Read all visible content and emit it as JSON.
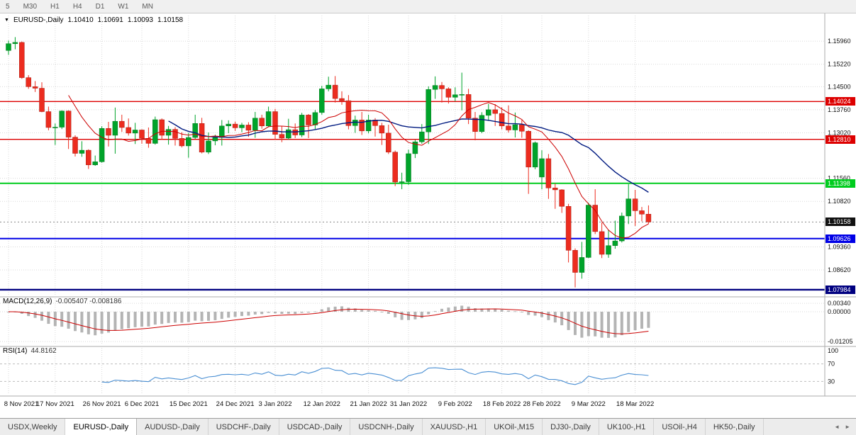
{
  "toolbar": {
    "timeframes": [
      "5",
      "M30",
      "H1",
      "H4",
      "D1",
      "W1",
      "MN"
    ]
  },
  "header": {
    "dropdown_icon": "▼",
    "symbol": "EURUSD-,Daily",
    "open": "1.10410",
    "high": "1.10691",
    "low": "1.10093",
    "close": "1.10158"
  },
  "chart": {
    "price_ticks": [
      {
        "label": "1.15960",
        "price": 1.1596
      },
      {
        "label": "1.15220",
        "price": 1.1522
      },
      {
        "label": "1.14500",
        "price": 1.145
      },
      {
        "label": "1.13760",
        "price": 1.1376
      },
      {
        "label": "1.13020",
        "price": 1.1302
      },
      {
        "label": "1.11560",
        "price": 1.1156
      },
      {
        "label": "1.10820",
        "price": 1.1082
      },
      {
        "label": "1.09360",
        "price": 1.0936
      },
      {
        "label": "1.08620",
        "price": 1.0862
      }
    ],
    "hlines": [
      {
        "label": "1.14024",
        "price": 1.14024,
        "color": "#dd0000",
        "width": 1.4
      },
      {
        "label": "1.12810",
        "price": 1.1281,
        "color": "#dd0000",
        "width": 1.4
      },
      {
        "label": "1.11398",
        "price": 1.11398,
        "color": "#00cc1e",
        "width": 2
      },
      {
        "label": "1.09626",
        "price": 1.09626,
        "color": "#0000e6",
        "width": 2
      },
      {
        "label": "1.07984",
        "price": 1.07984,
        "color": "#000080",
        "width": 2.4
      }
    ],
    "current_price": {
      "label": "1.10158",
      "price": 1.10158,
      "color": "#111111"
    },
    "dates": [
      {
        "label": "8 Nov 2021",
        "index": 0
      },
      {
        "label": "17 Nov 2021",
        "index": 7
      },
      {
        "label": "26 Nov 2021",
        "index": 14
      },
      {
        "label": "6 Dec 2021",
        "index": 20
      },
      {
        "label": "15 Dec 2021",
        "index": 27
      },
      {
        "label": "24 Dec 2021",
        "index": 34
      },
      {
        "label": "3 Jan 2022",
        "index": 40
      },
      {
        "label": "12 Jan 2022",
        "index": 47
      },
      {
        "label": "21 Jan 2022",
        "index": 54
      },
      {
        "label": "31 Jan 2022",
        "index": 60
      },
      {
        "label": "9 Feb 2022",
        "index": 67
      },
      {
        "label": "18 Feb 2022",
        "index": 74
      },
      {
        "label": "28 Feb 2022",
        "index": 80
      },
      {
        "label": "9 Mar 2022",
        "index": 87
      },
      {
        "label": "18 Mar 2022",
        "index": 94
      }
    ],
    "ma": {
      "fast_period": 10,
      "fast_color": "#cc0000",
      "slow_period": 25,
      "slow_color": "#001a80"
    },
    "candles": [
      [
        1.1566,
        1.1598,
        1.1552,
        1.1588
      ],
      [
        1.1588,
        1.1609,
        1.157,
        1.1592
      ],
      [
        1.1592,
        1.1595,
        1.1475,
        1.1479
      ],
      [
        1.1479,
        1.1487,
        1.1443,
        1.145
      ],
      [
        1.145,
        1.1468,
        1.1433,
        1.1445
      ],
      [
        1.1445,
        1.1464,
        1.1368,
        1.137
      ],
      [
        1.137,
        1.1386,
        1.131,
        1.1319
      ],
      [
        1.1319,
        1.1332,
        1.1263,
        1.132
      ],
      [
        1.132,
        1.1374,
        1.1314,
        1.1372
      ],
      [
        1.1372,
        1.1374,
        1.125,
        1.1288
      ],
      [
        1.1288,
        1.1294,
        1.1226,
        1.1236
      ],
      [
        1.1236,
        1.1275,
        1.1225,
        1.1246
      ],
      [
        1.1246,
        1.1249,
        1.1186,
        1.1199
      ],
      [
        1.1199,
        1.1229,
        1.1196,
        1.1209
      ],
      [
        1.1209,
        1.1323,
        1.1206,
        1.1316
      ],
      [
        1.1316,
        1.1337,
        1.1258,
        1.1294
      ],
      [
        1.1294,
        1.1383,
        1.1235,
        1.1339
      ],
      [
        1.1339,
        1.136,
        1.1305,
        1.1319
      ],
      [
        1.1319,
        1.1348,
        1.1293,
        1.1301
      ],
      [
        1.1301,
        1.1334,
        1.1266,
        1.1311
      ],
      [
        1.1311,
        1.1313,
        1.1267,
        1.1284
      ],
      [
        1.1284,
        1.1319,
        1.1254,
        1.1268
      ],
      [
        1.1268,
        1.1354,
        1.1264,
        1.1344
      ],
      [
        1.1344,
        1.1348,
        1.128,
        1.1294
      ],
      [
        1.1294,
        1.1324,
        1.1264,
        1.1313
      ],
      [
        1.1313,
        1.132,
        1.1261,
        1.1284
      ],
      [
        1.1284,
        1.1304,
        1.1255,
        1.126
      ],
      [
        1.126,
        1.1302,
        1.1222,
        1.1287
      ],
      [
        1.1287,
        1.136,
        1.1282,
        1.1332
      ],
      [
        1.1332,
        1.135,
        1.1236,
        1.124
      ],
      [
        1.124,
        1.1303,
        1.1234,
        1.1276
      ],
      [
        1.1276,
        1.1296,
        1.1262,
        1.1287
      ],
      [
        1.1287,
        1.1343,
        1.1261,
        1.1324
      ],
      [
        1.1324,
        1.1342,
        1.1301,
        1.133
      ],
      [
        1.133,
        1.1338,
        1.1308,
        1.1318
      ],
      [
        1.1318,
        1.1334,
        1.1304,
        1.1327
      ],
      [
        1.1327,
        1.1336,
        1.1289,
        1.131
      ],
      [
        1.131,
        1.1369,
        1.1286,
        1.1349
      ],
      [
        1.1349,
        1.136,
        1.1315,
        1.1324
      ],
      [
        1.1324,
        1.1386,
        1.132,
        1.137
      ],
      [
        1.137,
        1.1379,
        1.1279,
        1.1297
      ],
      [
        1.1297,
        1.1323,
        1.1272,
        1.1285
      ],
      [
        1.1285,
        1.1347,
        1.128,
        1.1312
      ],
      [
        1.1312,
        1.1332,
        1.1285,
        1.1295
      ],
      [
        1.1295,
        1.1366,
        1.1288,
        1.1359
      ],
      [
        1.1359,
        1.1362,
        1.1285,
        1.1327
      ],
      [
        1.1327,
        1.1375,
        1.1314,
        1.1367
      ],
      [
        1.1367,
        1.1453,
        1.136,
        1.1443
      ],
      [
        1.1443,
        1.1482,
        1.1435,
        1.1455
      ],
      [
        1.1455,
        1.1484,
        1.1399,
        1.1412
      ],
      [
        1.1412,
        1.1435,
        1.1392,
        1.1405
      ],
      [
        1.1405,
        1.1423,
        1.1313,
        1.1325
      ],
      [
        1.1325,
        1.1357,
        1.1302,
        1.1343
      ],
      [
        1.1343,
        1.1369,
        1.1295,
        1.1308
      ],
      [
        1.1308,
        1.136,
        1.13,
        1.1343
      ],
      [
        1.1343,
        1.1349,
        1.129,
        1.1325
      ],
      [
        1.1325,
        1.1334,
        1.1263,
        1.1301
      ],
      [
        1.1301,
        1.1328,
        1.1234,
        1.124
      ],
      [
        1.124,
        1.1245,
        1.1131,
        1.1144
      ],
      [
        1.1144,
        1.1174,
        1.1121,
        1.1145
      ],
      [
        1.1145,
        1.1248,
        1.1135,
        1.1235
      ],
      [
        1.1235,
        1.1279,
        1.1221,
        1.1273
      ],
      [
        1.1273,
        1.133,
        1.1267,
        1.1305
      ],
      [
        1.1305,
        1.1451,
        1.1266,
        1.1441
      ],
      [
        1.1441,
        1.1483,
        1.1411,
        1.1454
      ],
      [
        1.1454,
        1.1465,
        1.1399,
        1.1443
      ],
      [
        1.1443,
        1.1448,
        1.1396,
        1.1416
      ],
      [
        1.1416,
        1.1448,
        1.1403,
        1.1424
      ],
      [
        1.1424,
        1.1495,
        1.1374,
        1.1425
      ],
      [
        1.1425,
        1.1443,
        1.133,
        1.1349
      ],
      [
        1.1349,
        1.1369,
        1.1278,
        1.1306
      ],
      [
        1.1306,
        1.1368,
        1.1301,
        1.1358
      ],
      [
        1.1358,
        1.1395,
        1.134,
        1.1376
      ],
      [
        1.1376,
        1.1394,
        1.1324,
        1.1364
      ],
      [
        1.1364,
        1.1384,
        1.1313,
        1.1324
      ],
      [
        1.1324,
        1.139,
        1.1303,
        1.1311
      ],
      [
        1.1311,
        1.1367,
        1.1287,
        1.1328
      ],
      [
        1.1328,
        1.1343,
        1.1286,
        1.1307
      ],
      [
        1.1307,
        1.131,
        1.1106,
        1.1192
      ],
      [
        1.1192,
        1.1274,
        1.1185,
        1.127
      ],
      [
        1.116,
        1.1246,
        1.1121,
        1.1219
      ],
      [
        1.1219,
        1.1234,
        1.109,
        1.1125
      ],
      [
        1.1125,
        1.114,
        1.1058,
        1.1119
      ],
      [
        1.1119,
        1.1121,
        1.1045,
        1.1066
      ],
      [
        1.1066,
        1.1074,
        1.0886,
        1.0925
      ],
      [
        1.0925,
        1.0931,
        1.0806,
        1.0854
      ],
      [
        1.0854,
        1.0952,
        1.0834,
        1.0902
      ],
      [
        1.0902,
        1.1078,
        1.09,
        1.107
      ],
      [
        1.107,
        1.1121,
        1.0977,
        1.0985
      ],
      [
        1.0985,
        1.1014,
        1.09,
        1.0912
      ],
      [
        1.0912,
        1.0991,
        1.0901,
        1.094
      ],
      [
        1.094,
        1.102,
        1.093,
        1.0955
      ],
      [
        1.0955,
        1.1046,
        1.095,
        1.1035
      ],
      [
        1.1035,
        1.1137,
        1.1009,
        1.109
      ],
      [
        1.109,
        1.1119,
        1.1003,
        1.1052
      ],
      [
        1.1052,
        1.1064,
        1.1018,
        1.1041
      ],
      [
        1.1041,
        1.10691,
        1.10093,
        1.10158
      ]
    ]
  },
  "macd": {
    "title": "MACD(12,26,9)",
    "values": "-0.005407 -0.008186",
    "fast": 12,
    "slow": 26,
    "signal": 9,
    "axis": [
      {
        "label": "0.00340",
        "value": 0.0034
      },
      {
        "label": "0.00000",
        "value": 0
      },
      {
        "label": "-0.01205",
        "value": -0.01205
      }
    ],
    "hist_color": "#b4b4b4",
    "signal_color": "#cc0000"
  },
  "rsi": {
    "title": "RSI(14)",
    "value": "44.8162",
    "period": 14,
    "axis": [
      {
        "label": "100",
        "value": 100
      },
      {
        "label": "70",
        "value": 70
      },
      {
        "label": "30",
        "value": 30
      }
    ],
    "levels": [
      70,
      30
    ],
    "line_color": "#4a8fd3"
  },
  "tabs": {
    "scroll_left": "◄",
    "scroll_right": "►",
    "items": [
      {
        "label": "USDX,Weekly",
        "active": false
      },
      {
        "label": "EURUSD-,Daily",
        "active": true
      },
      {
        "label": "AUDUSD-,Daily",
        "active": false
      },
      {
        "label": "USDCHF-,Daily",
        "active": false
      },
      {
        "label": "USDCAD-,Daily",
        "active": false
      },
      {
        "label": "USDCNH-,Daily",
        "active": false
      },
      {
        "label": "XAUUSD-,H1",
        "active": false
      },
      {
        "label": "UKOil-,M15",
        "active": false
      },
      {
        "label": "DJ30-,Daily",
        "active": false
      },
      {
        "label": "UK100-,H1",
        "active": false
      },
      {
        "label": "USOil-,H4",
        "active": false
      },
      {
        "label": "HK50-,Daily",
        "active": false
      }
    ]
  },
  "colors": {
    "bull": "#00a32a",
    "bear": "#ec2c1f",
    "grid": "#d9d9d9",
    "separator": "#ababab",
    "axis_text": "#111111"
  }
}
